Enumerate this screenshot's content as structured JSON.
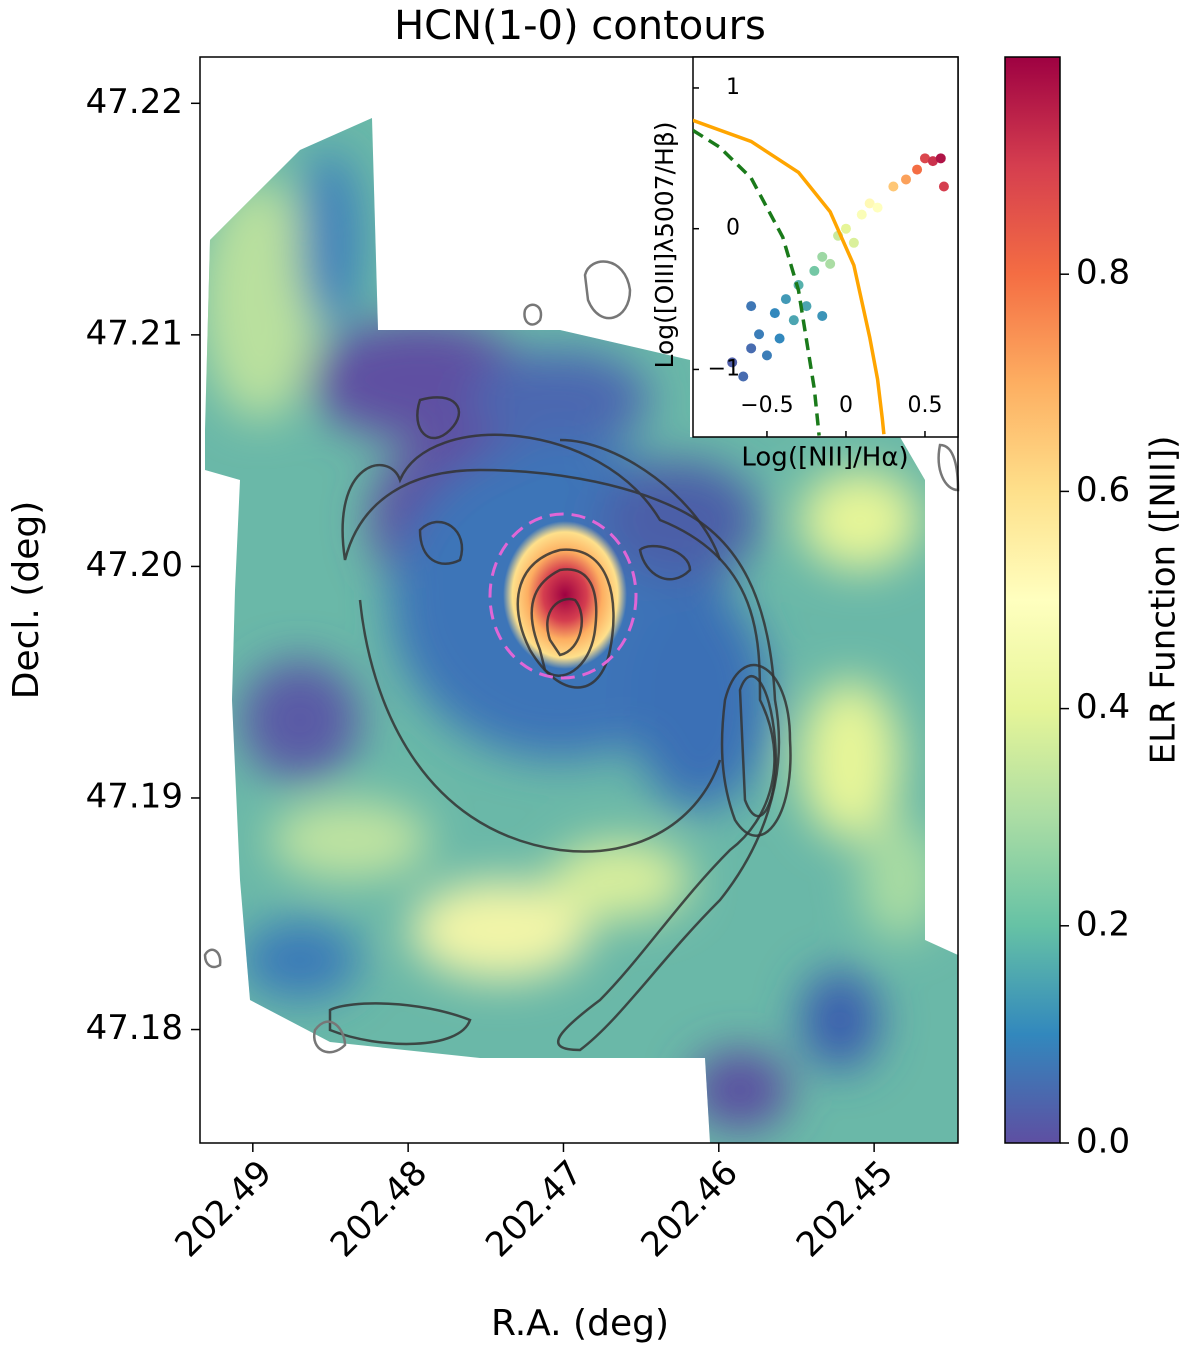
{
  "chart_data": [
    {
      "type": "map",
      "title": "HCN(1-0) contours",
      "xlabel": "R.A. (deg)",
      "ylabel": "Decl. (deg)",
      "xlim": [
        202.4934,
        202.4446
      ],
      "xticks": [
        202.49,
        202.48,
        202.47,
        202.46,
        202.45
      ],
      "ylim": [
        47.1751,
        47.222
      ],
      "yticks": [
        {
          "value": 47.18,
          "label": "47.18"
        },
        47.19,
        {
          "value": 47.2,
          "label": "47.20"
        },
        47.21,
        47.22
      ]
    },
    {
      "type": "scatter",
      "xlabel": "Log([NII]/Hα)",
      "ylabel": "Log([OIII]λ5007/Hβ)",
      "xlim": [
        -0.968,
        0.709
      ],
      "xticks": [
        {
          "value": -0.5,
          "label": "−0.5"
        },
        0,
        0.5
      ],
      "ylim": [
        -1.48,
        1.22
      ],
      "yticks": [
        {
          "value": -1,
          "label": "−1"
        },
        0,
        1
      ],
      "x": [
        -0.72,
        -0.65,
        -0.6,
        -0.55,
        -0.5,
        -0.45,
        -0.42,
        -0.38,
        -0.33,
        -0.3,
        -0.25,
        -0.2,
        -0.15,
        -0.1,
        -0.05,
        0.0,
        0.05,
        0.1,
        0.15,
        0.2,
        0.3,
        0.38,
        0.45,
        0.5,
        0.55,
        0.6,
        0.62,
        -0.15,
        -0.6
      ],
      "values": [
        -0.95,
        -1.05,
        -0.85,
        -0.75,
        -0.9,
        -0.6,
        -0.78,
        -0.5,
        -0.65,
        -0.4,
        -0.55,
        -0.3,
        -0.2,
        -0.25,
        -0.05,
        0.0,
        -0.1,
        0.1,
        0.18,
        0.15,
        0.3,
        0.35,
        0.42,
        0.5,
        0.48,
        0.5,
        0.3,
        -0.62,
        -0.55
      ],
      "color_values": [
        0.03,
        0.05,
        0.05,
        0.08,
        0.08,
        0.1,
        0.1,
        0.13,
        0.15,
        0.17,
        0.15,
        0.22,
        0.28,
        0.3,
        0.35,
        0.4,
        0.38,
        0.48,
        0.52,
        0.5,
        0.65,
        0.72,
        0.8,
        0.88,
        0.92,
        0.97,
        0.9,
        0.12,
        0.07
      ],
      "curves": [
        {
          "color": "#1a7a1a",
          "dashed": true,
          "x": [
            -0.97,
            -0.8,
            -0.6,
            -0.4,
            -0.3,
            -0.2,
            -0.17
          ],
          "values": [
            0.7,
            0.58,
            0.36,
            -0.06,
            -0.44,
            -1.14,
            -1.47
          ]
        },
        {
          "color": "#ffa500",
          "dashed": false,
          "x": [
            -0.97,
            -0.6,
            -0.3,
            -0.1,
            0.05,
            0.15,
            0.2,
            0.23,
            0.24
          ],
          "values": [
            0.77,
            0.62,
            0.4,
            0.12,
            -0.26,
            -0.77,
            -1.07,
            -1.35,
            -1.46
          ]
        }
      ]
    },
    {
      "type": "colorbar",
      "ylabel": "ELR Function ([NII])",
      "ylim": [
        0,
        1
      ],
      "yticks": [
        {
          "value": 0,
          "label": "0.0"
        },
        0.2,
        0.4,
        0.6,
        0.8
      ],
      "colormap": [
        "#5e4fa2",
        "#3288bd",
        "#66c2a5",
        "#abdda4",
        "#e6f598",
        "#ffffbf",
        "#fee08b",
        "#fdae61",
        "#f46d43",
        "#d53e4f",
        "#9e0142"
      ]
    }
  ]
}
